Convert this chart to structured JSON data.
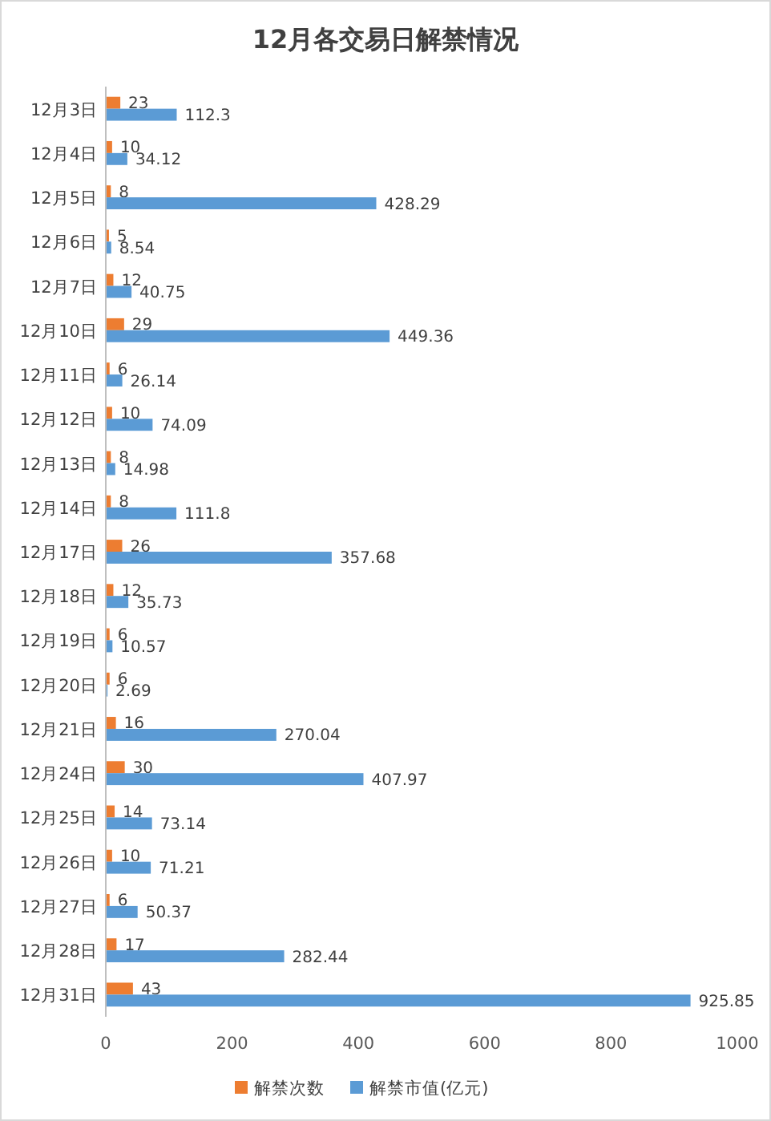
{
  "chart_data": {
    "type": "bar",
    "orientation": "horizontal",
    "title": "12月各交易日解禁情况",
    "categories": [
      "12月3日",
      "12月4日",
      "12月5日",
      "12月6日",
      "12月7日",
      "12月10日",
      "12月11日",
      "12月12日",
      "12月13日",
      "12月14日",
      "12月17日",
      "12月18日",
      "12月19日",
      "12月20日",
      "12月21日",
      "12月24日",
      "12月25日",
      "12月26日",
      "12月27日",
      "12月28日",
      "12月31日"
    ],
    "series": [
      {
        "name": "解禁次数",
        "color": "#ed7d31",
        "values": [
          23,
          10,
          8,
          5,
          12,
          29,
          6,
          10,
          8,
          8,
          26,
          12,
          6,
          6,
          16,
          30,
          14,
          10,
          6,
          17,
          43
        ]
      },
      {
        "name": "解禁市值(亿元)",
        "color": "#5b9bd5",
        "values": [
          112.3,
          34.12,
          428.29,
          8.54,
          40.75,
          449.36,
          26.14,
          74.09,
          14.98,
          111.8,
          357.68,
          35.73,
          10.57,
          2.69,
          270.04,
          407.97,
          73.14,
          71.21,
          50.37,
          282.44,
          925.85
        ]
      }
    ],
    "xlim": [
      0,
      1000
    ],
    "xticks": [
      0,
      200,
      400,
      600,
      800,
      1000
    ],
    "data_labels": true,
    "legend": "bottom"
  }
}
